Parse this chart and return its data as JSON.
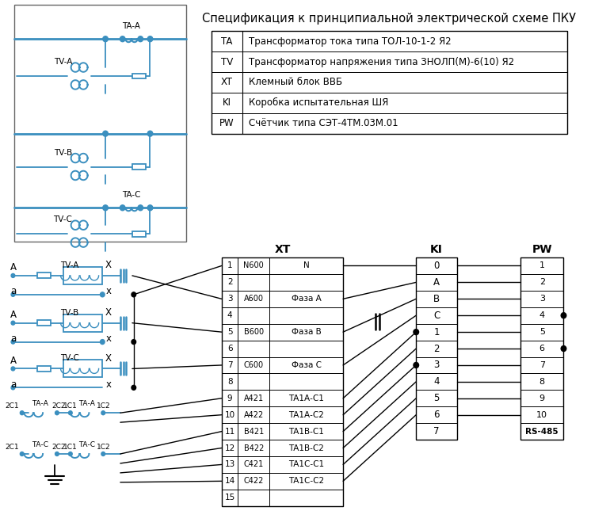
{
  "bg_color": "#ffffff",
  "line_color": "#3B8FBF",
  "text_color": "#000000",
  "title": "Спецификация к принципиальной электрической схеме ПКУ",
  "spec_table": [
    [
      "TA",
      "Трансформатор тока типа ТОЛ-10-1-2 Я2"
    ],
    [
      "TV",
      "Трансформатор напряжения типа ЗНОЛП(М)-6(10) Я2"
    ],
    [
      "XT",
      "Клемный блок ВВБ"
    ],
    [
      "KI",
      "Коробка испытательная ШЯ"
    ],
    [
      "PW",
      "Счётчик типа СЭТ-4ТМ.03М.01"
    ]
  ],
  "xt_rows": [
    [
      1,
      "N600",
      "N"
    ],
    [
      2,
      "",
      ""
    ],
    [
      3,
      "A600",
      "Фаза A"
    ],
    [
      4,
      "",
      ""
    ],
    [
      5,
      "B600",
      "Фаза B"
    ],
    [
      6,
      "",
      ""
    ],
    [
      7,
      "C600",
      "Фаза C"
    ],
    [
      8,
      "",
      ""
    ],
    [
      9,
      "A421",
      "ТА1А-С1"
    ],
    [
      10,
      "A422",
      "ТА1А-С2"
    ],
    [
      11,
      "B421",
      "ТА1В-С1"
    ],
    [
      12,
      "B422",
      "ТА1В-С2"
    ],
    [
      13,
      "C421",
      "ТА1С-С1"
    ],
    [
      14,
      "C422",
      "ТА1С-С2"
    ],
    [
      15,
      "",
      ""
    ]
  ],
  "ki_rows": [
    "0",
    "A",
    "B",
    "C",
    "1",
    "2",
    "3",
    "4",
    "5",
    "6",
    "7"
  ],
  "pw_rows": [
    "1",
    "2",
    "3",
    "4",
    "5",
    "6",
    "7",
    "8",
    "9",
    "10",
    "RS-485"
  ]
}
